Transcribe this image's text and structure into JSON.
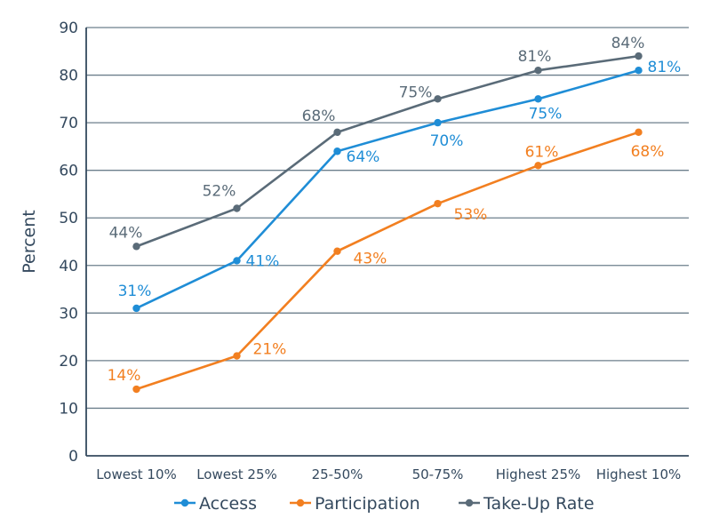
{
  "chart_data": {
    "type": "line",
    "categories": [
      "Lowest 10%",
      "Lowest 25%",
      "25-50%",
      "50-75%",
      "Highest 25%",
      "Highest 10%"
    ],
    "series": [
      {
        "name": "Access",
        "values": [
          31,
          41,
          64,
          70,
          75,
          81
        ],
        "labels": [
          "31%",
          "41%",
          "64%",
          "70%",
          "75%",
          "81%"
        ],
        "color": "#1f8dd6"
      },
      {
        "name": "Participation",
        "values": [
          14,
          21,
          43,
          53,
          61,
          68
        ],
        "labels": [
          "14%",
          "21%",
          "43%",
          "53%",
          "61%",
          "68%"
        ],
        "color": "#f27f20"
      },
      {
        "name": "Take-Up Rate",
        "values": [
          44,
          52,
          68,
          75,
          81,
          84
        ],
        "labels": [
          "44%",
          "52%",
          "68%",
          "75%",
          "81%",
          "84%"
        ],
        "color": "#5a6b78"
      }
    ],
    "y_ticks": [
      "0",
      "10",
      "20",
      "30",
      "40",
      "50",
      "60",
      "70",
      "80",
      "90"
    ],
    "ylabel": "Percent",
    "xlabel": "",
    "ylim": [
      0,
      90
    ],
    "grid": true,
    "legend_position": "bottom"
  }
}
